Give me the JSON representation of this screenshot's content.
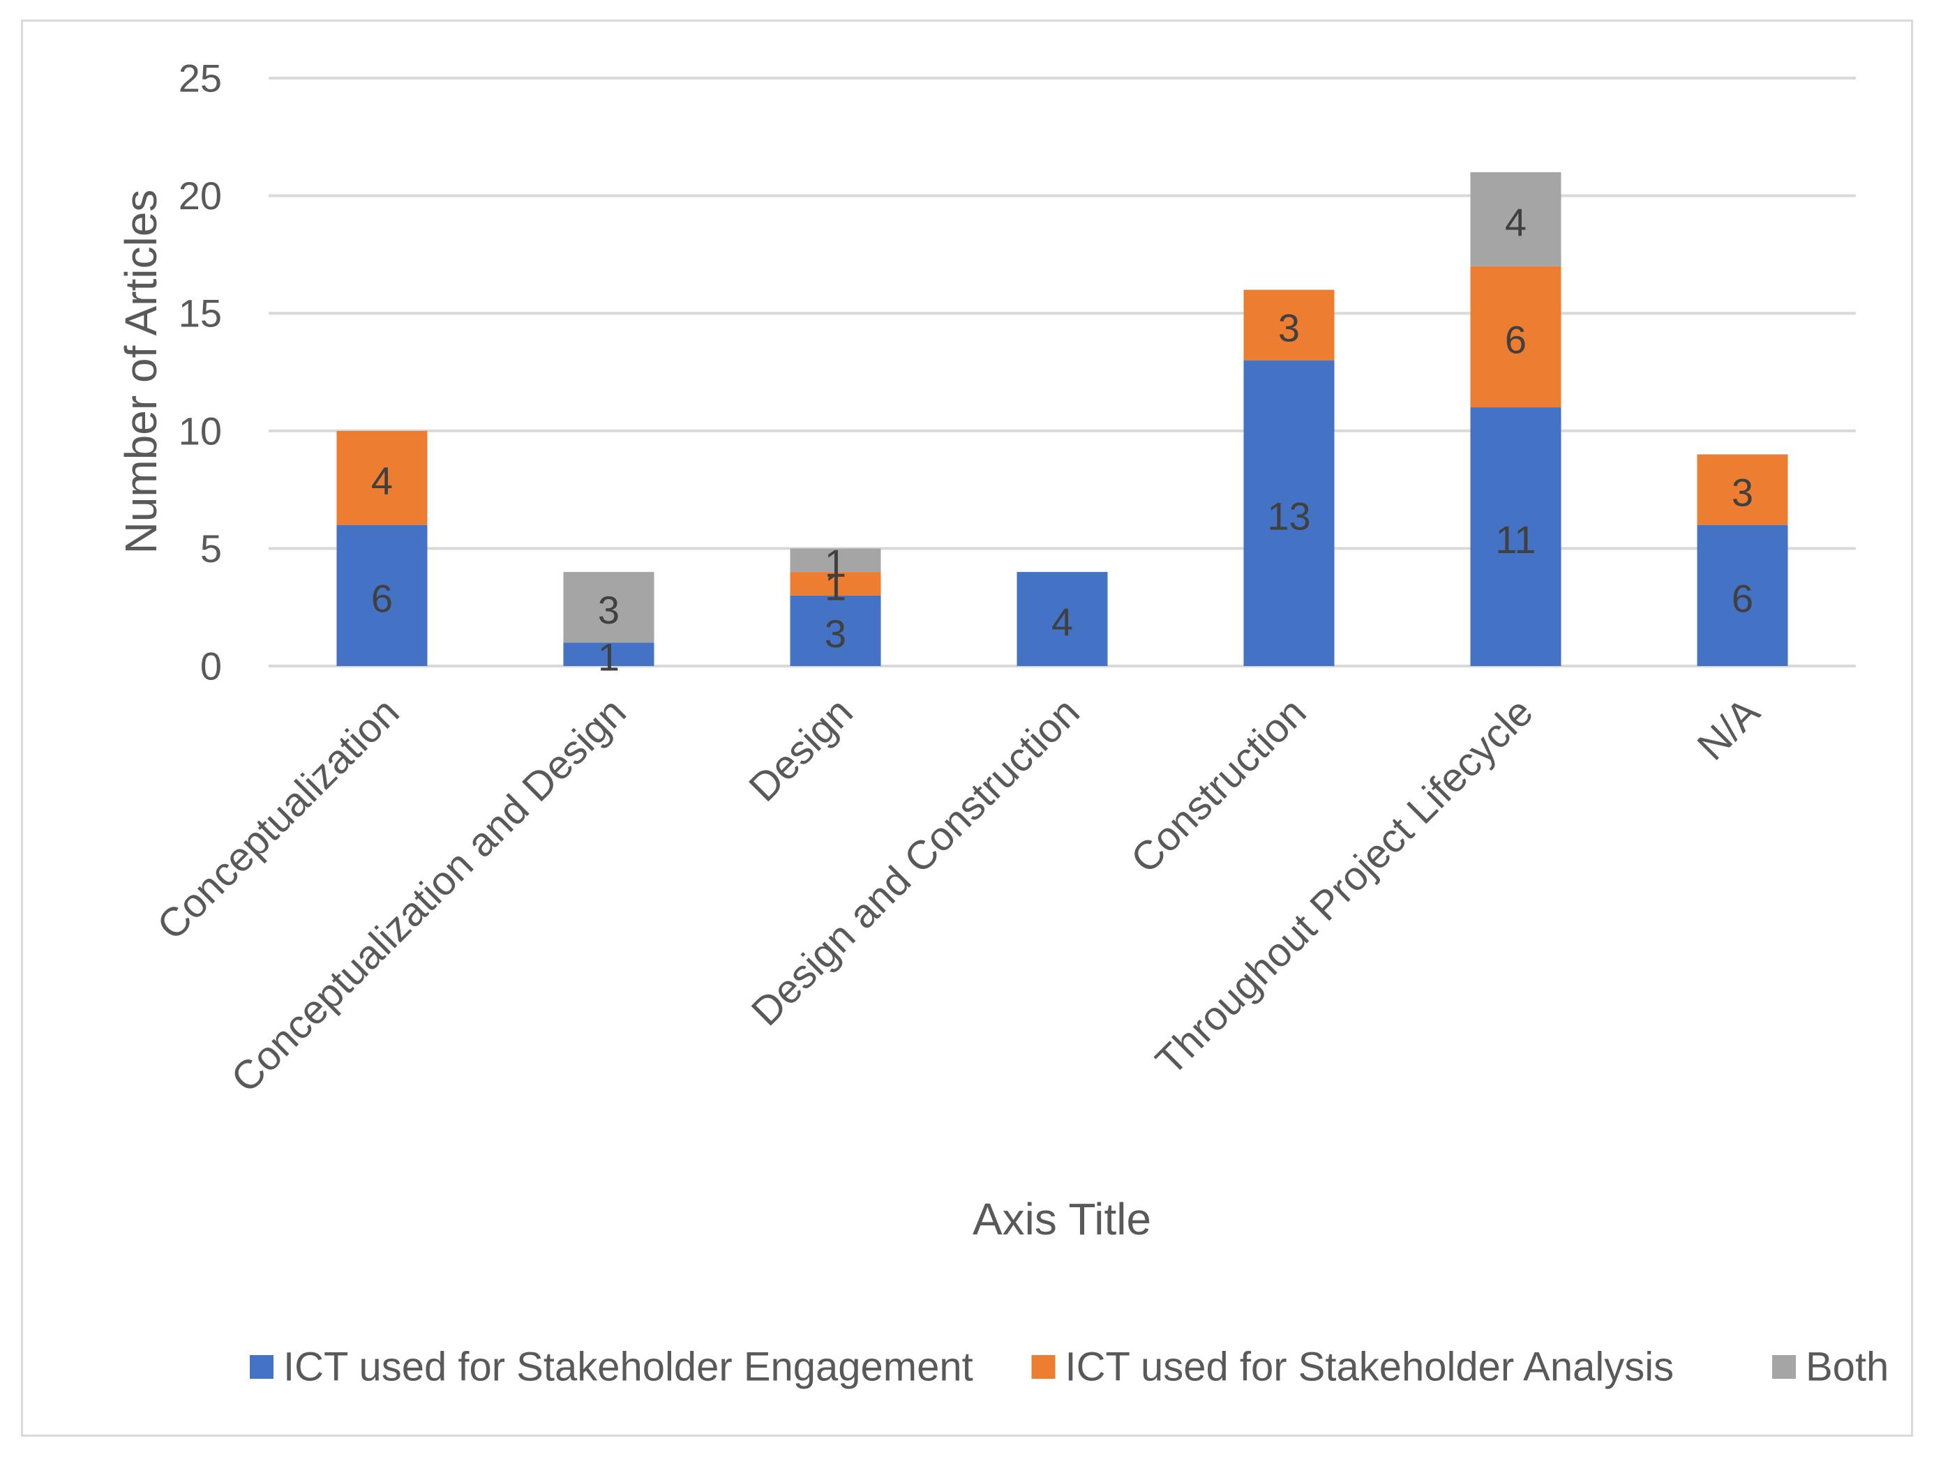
{
  "chart_data": {
    "type": "bar",
    "stacked": true,
    "title": "",
    "xlabel": "Axis Title",
    "ylabel": "Number of Articles",
    "ylim": [
      0,
      25
    ],
    "yticks": [
      0,
      5,
      10,
      15,
      20,
      25
    ],
    "grid": true,
    "legend_position": "bottom",
    "categories": [
      "Conceptualization",
      "Conceptualization and  Design",
      "Design",
      "Design and Construction",
      "Construction",
      "Throughout Project Lifecycle",
      "N/A"
    ],
    "series": [
      {
        "name": "ICT used for Stakeholder Engagement",
        "color": "#4472c4",
        "values": [
          6,
          1,
          3,
          4,
          13,
          11,
          6
        ]
      },
      {
        "name": "ICT used for Stakeholder Analysis",
        "color": "#ed7d31",
        "values": [
          4,
          0,
          1,
          0,
          3,
          6,
          3
        ]
      },
      {
        "name": "Both",
        "color": "#a5a5a5",
        "values": [
          0,
          3,
          1,
          0,
          0,
          4,
          0
        ]
      }
    ]
  }
}
